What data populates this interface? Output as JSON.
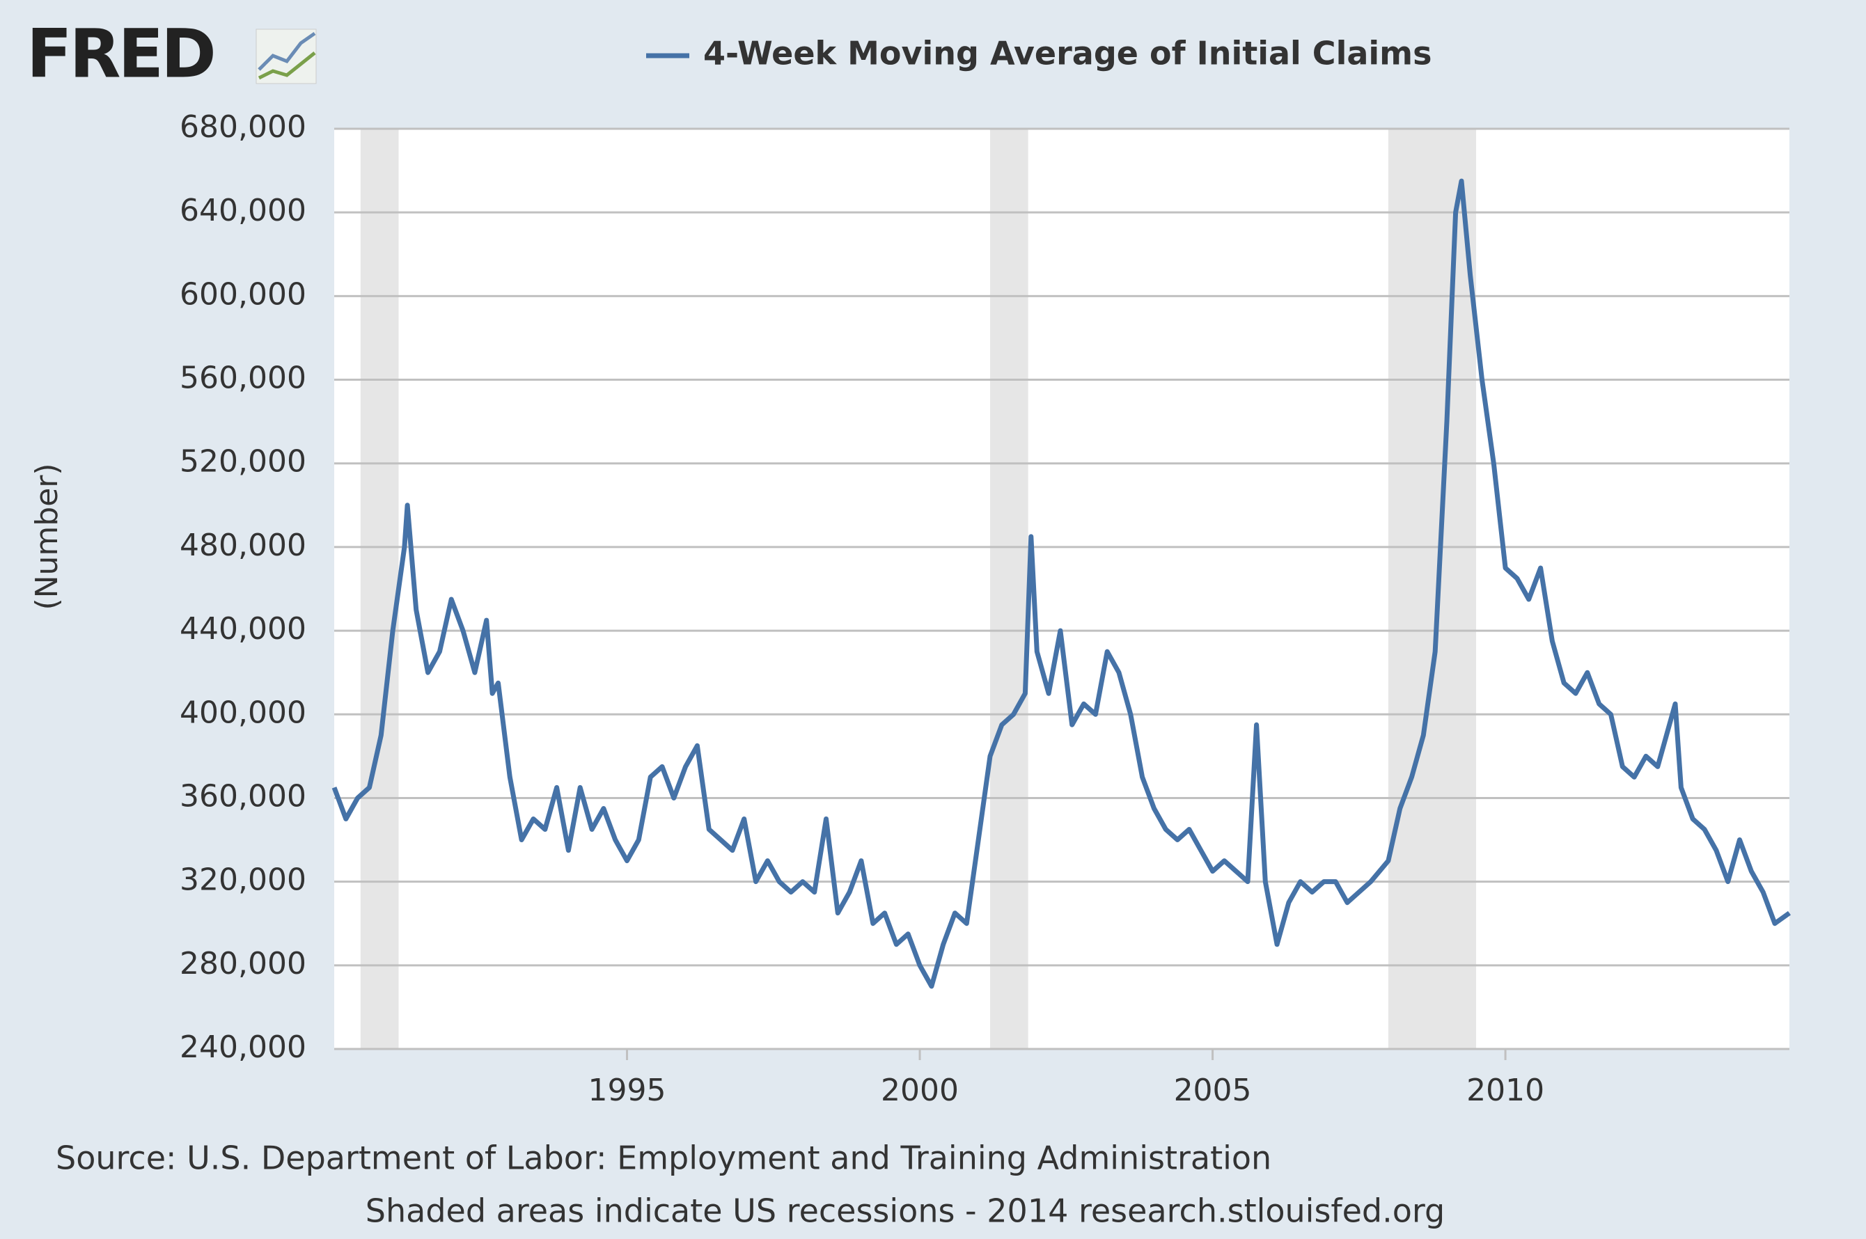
{
  "logo": "FRED",
  "chart_data": {
    "type": "line",
    "y_label": "(Number)",
    "source": "Source: U.S. Department of Labor: Employment and Training Administration",
    "note": "Shaded areas indicate US recessions - 2014 research.stlouisfed.org",
    "x": [
      1990.0,
      1990.2,
      1990.4,
      1990.6,
      1990.8,
      1991.0,
      1991.2,
      1991.25,
      1991.4,
      1991.6,
      1991.8,
      1992.0,
      1992.2,
      1992.4,
      1992.6,
      1992.7,
      1992.8,
      1993.0,
      1993.2,
      1993.4,
      1993.6,
      1993.8,
      1994.0,
      1994.2,
      1994.4,
      1994.6,
      1994.8,
      1995.0,
      1995.2,
      1995.4,
      1995.6,
      1995.8,
      1996.0,
      1996.2,
      1996.4,
      1996.6,
      1996.8,
      1997.0,
      1997.2,
      1997.4,
      1997.6,
      1997.8,
      1998.0,
      1998.2,
      1998.4,
      1998.6,
      1998.8,
      1999.0,
      1999.2,
      1999.4,
      1999.6,
      1999.8,
      2000.0,
      2000.2,
      2000.4,
      2000.6,
      2000.8,
      2001.0,
      2001.2,
      2001.4,
      2001.6,
      2001.8,
      2001.9,
      2002.0,
      2002.2,
      2002.4,
      2002.6,
      2002.8,
      2003.0,
      2003.2,
      2003.4,
      2003.6,
      2003.8,
      2004.0,
      2004.2,
      2004.4,
      2004.6,
      2004.8,
      2005.0,
      2005.2,
      2005.4,
      2005.6,
      2005.75,
      2005.9,
      2006.1,
      2006.3,
      2006.5,
      2006.7,
      2006.9,
      2007.1,
      2007.3,
      2007.5,
      2007.7,
      2008.0,
      2008.2,
      2008.4,
      2008.6,
      2008.8,
      2009.0,
      2009.15,
      2009.25,
      2009.4,
      2009.6,
      2009.8,
      2010.0,
      2010.2,
      2010.4,
      2010.6,
      2010.8,
      2011.0,
      2011.2,
      2011.4,
      2011.6,
      2011.8,
      2012.0,
      2012.2,
      2012.4,
      2012.6,
      2012.9,
      2013.0,
      2013.2,
      2013.4,
      2013.6,
      2013.8,
      2014.0,
      2014.2,
      2014.4,
      2014.6,
      2014.85
    ],
    "series": [
      {
        "name": "4-Week Moving Average of Initial Claims",
        "color": "#4572a7",
        "values": [
          365000,
          350000,
          360000,
          365000,
          390000,
          440000,
          480000,
          500000,
          450000,
          420000,
          430000,
          455000,
          440000,
          420000,
          445000,
          410000,
          415000,
          370000,
          340000,
          350000,
          345000,
          365000,
          335000,
          365000,
          345000,
          355000,
          340000,
          330000,
          340000,
          370000,
          375000,
          360000,
          375000,
          385000,
          345000,
          340000,
          335000,
          350000,
          320000,
          330000,
          320000,
          315000,
          320000,
          315000,
          350000,
          305000,
          315000,
          330000,
          300000,
          305000,
          290000,
          295000,
          280000,
          270000,
          290000,
          305000,
          300000,
          340000,
          380000,
          395000,
          400000,
          410000,
          485000,
          430000,
          410000,
          440000,
          395000,
          405000,
          400000,
          430000,
          420000,
          400000,
          370000,
          355000,
          345000,
          340000,
          345000,
          335000,
          325000,
          330000,
          325000,
          320000,
          395000,
          320000,
          290000,
          310000,
          320000,
          315000,
          320000,
          320000,
          310000,
          315000,
          320000,
          330000,
          355000,
          370000,
          390000,
          430000,
          540000,
          640000,
          655000,
          610000,
          560000,
          520000,
          470000,
          465000,
          455000,
          470000,
          435000,
          415000,
          410000,
          420000,
          405000,
          400000,
          375000,
          370000,
          380000,
          375000,
          405000,
          365000,
          350000,
          345000,
          335000,
          320000,
          340000,
          325000,
          315000,
          300000,
          305000
        ]
      }
    ],
    "recessions": [
      [
        1990.45,
        1991.1
      ],
      [
        2001.2,
        2001.85
      ],
      [
        2008.0,
        2009.5
      ]
    ],
    "recession_color": "#e6e6e6",
    "xlim": [
      1990.0,
      2014.85
    ],
    "xticks": [
      1995,
      2000,
      2005,
      2010
    ],
    "ylim": [
      240000,
      680000
    ],
    "yticks": [
      {
        "value": 240000,
        "label": "240,000"
      },
      {
        "value": 280000,
        "label": "280,000"
      },
      {
        "value": 320000,
        "label": "320,000"
      },
      {
        "value": 360000,
        "label": "360,000"
      },
      {
        "value": 400000,
        "label": "400,000"
      },
      {
        "value": 440000,
        "label": "440,000"
      },
      {
        "value": 480000,
        "label": "480,000"
      },
      {
        "value": 520000,
        "label": "520,000"
      },
      {
        "value": 560000,
        "label": "560,000"
      },
      {
        "value": 600000,
        "label": "600,000"
      },
      {
        "value": 640000,
        "label": "640,000"
      },
      {
        "value": 680000,
        "label": "680,000"
      }
    ],
    "grid": true
  }
}
